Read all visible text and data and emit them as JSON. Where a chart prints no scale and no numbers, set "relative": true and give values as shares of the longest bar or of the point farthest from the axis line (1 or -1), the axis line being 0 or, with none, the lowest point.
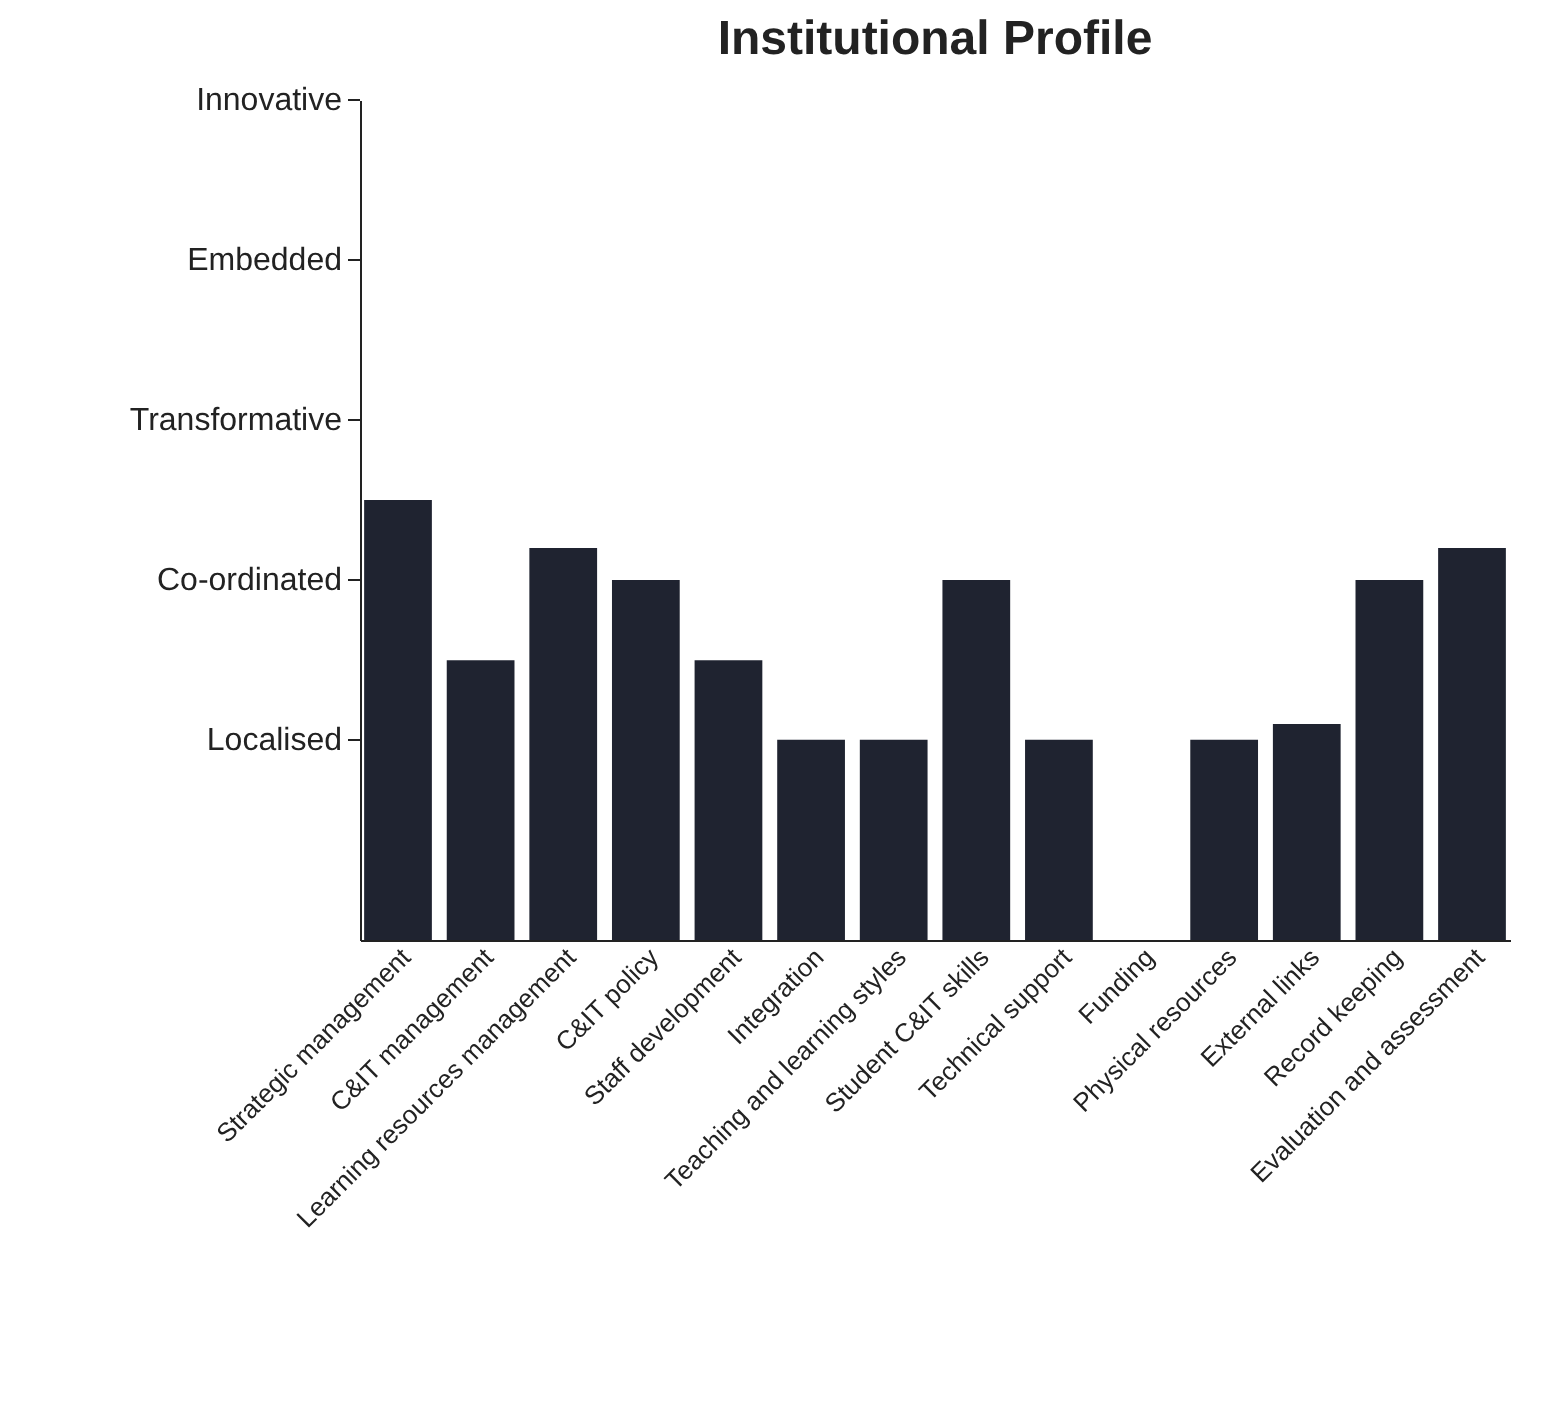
{
  "chart_data": {
    "type": "bar",
    "title": "Institutional Profile",
    "categories": [
      "Strategic management",
      "C&IT management",
      "Learning resources management",
      "C&IT policy",
      "Staff development",
      "Integration",
      "Teaching and learning styles",
      "Student C&IT skills",
      "Technical support",
      "Funding",
      "Physical resources",
      "External links",
      "Record keeping",
      "Evaluation and assessment"
    ],
    "values": [
      1.0,
      0.636,
      0.891,
      0.818,
      0.636,
      0.455,
      0.455,
      0.818,
      0.455,
      null,
      0.455,
      0.491,
      0.818,
      0.891
    ],
    "color": "#1f2330",
    "relative": true,
    "annotations": [
      "Localised",
      "Co-ordinated",
      "Transformative",
      "Embedded",
      "Innovative"
    ]
  }
}
